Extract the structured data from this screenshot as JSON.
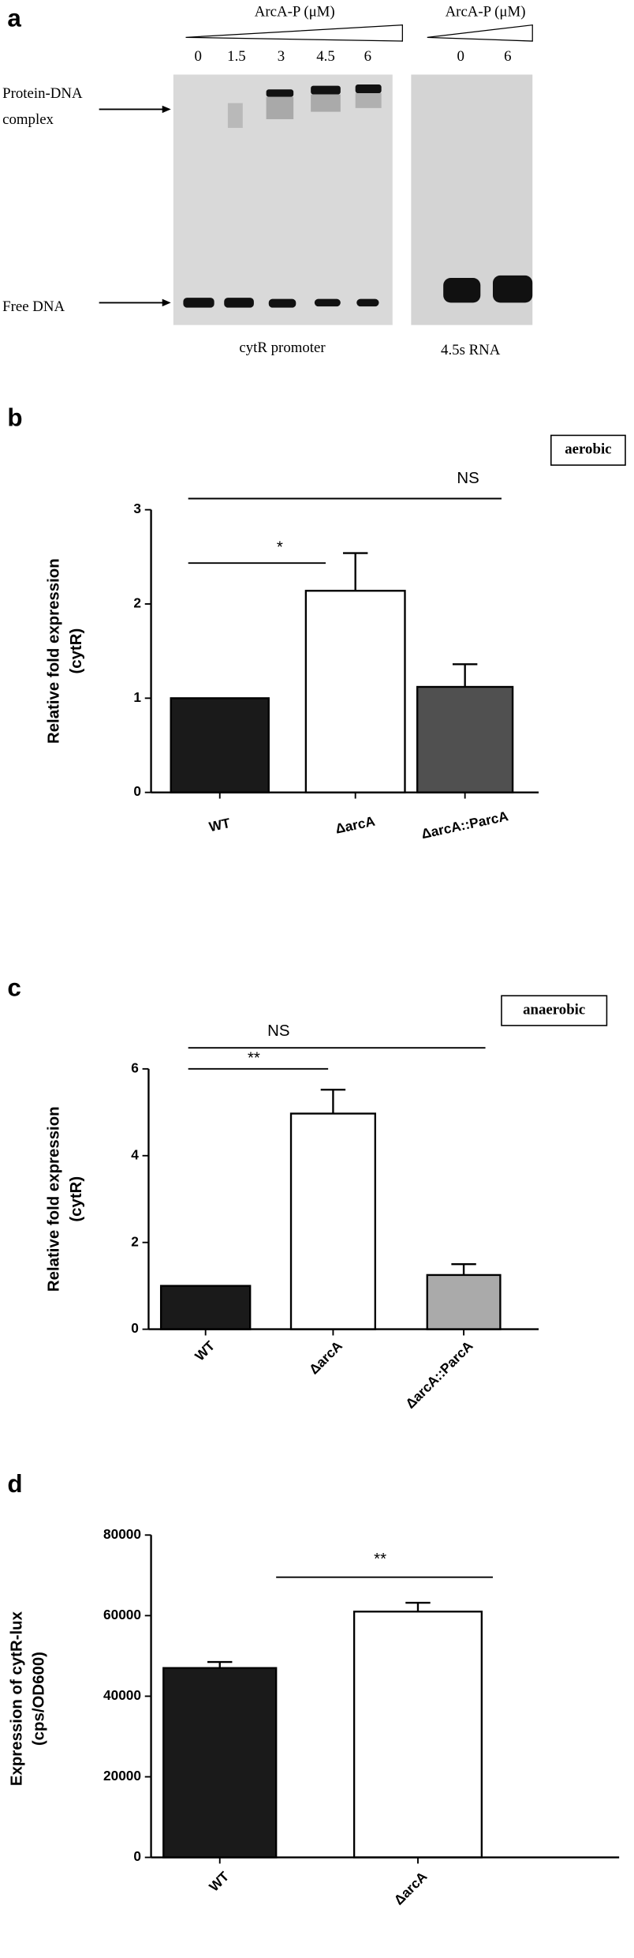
{
  "gel": {
    "panel": "a",
    "left_header": "ArcA-P (μM)",
    "left_lanes": [
      "0",
      "1.5",
      "3",
      "4.5",
      "6"
    ],
    "right_header": "ArcA-P (μM)",
    "right_lanes": [
      "0",
      "6"
    ],
    "complex_label": [
      "Protein-DNA",
      "complex"
    ],
    "free_label": "Free DNA",
    "left_caption": "cytR promoter",
    "right_caption": "4.5s RNA"
  },
  "chart_data": [
    {
      "type": "bar",
      "panel": "b",
      "condition": "aerobic",
      "categories": [
        "WT",
        "ΔarcA",
        "ΔarcA::ParcA"
      ],
      "values": [
        1.0,
        2.14,
        1.12
      ],
      "errors": [
        null,
        0.4,
        0.24
      ],
      "colors": [
        "#1a1a1a",
        "#ffffff",
        "#505050"
      ],
      "ylim": [
        0,
        3
      ],
      "yticks": [
        0,
        1,
        2,
        3
      ],
      "ylabel": [
        "Relative fold expression",
        "(cytR)"
      ],
      "annotations": [
        "*",
        "NS"
      ]
    },
    {
      "type": "bar",
      "panel": "c",
      "condition": "anaerobic",
      "categories": [
        "WT",
        "ΔarcA",
        "ΔarcA::ParcA"
      ],
      "values": [
        1.0,
        4.97,
        1.25
      ],
      "errors": [
        null,
        0.55,
        0.25
      ],
      "colors": [
        "#1a1a1a",
        "#ffffff",
        "#aaaaaa"
      ],
      "ylim": [
        0,
        6
      ],
      "yticks": [
        0,
        2,
        4,
        6
      ],
      "ylabel": [
        "Relative fold expression",
        "(cytR)"
      ],
      "annotations": [
        "**",
        "NS"
      ]
    },
    {
      "type": "bar",
      "panel": "d",
      "categories": [
        "WT",
        "ΔarcA"
      ],
      "values": [
        47000,
        61000
      ],
      "errors": [
        1500,
        2200
      ],
      "colors": [
        "#1a1a1a",
        "#ffffff"
      ],
      "ylim": [
        0,
        80000
      ],
      "yticks": [
        0,
        20000,
        40000,
        60000,
        80000
      ],
      "ylabel": [
        "Expression of cytR-lux",
        "(cps/OD600)"
      ],
      "annotations": [
        "**"
      ]
    }
  ]
}
